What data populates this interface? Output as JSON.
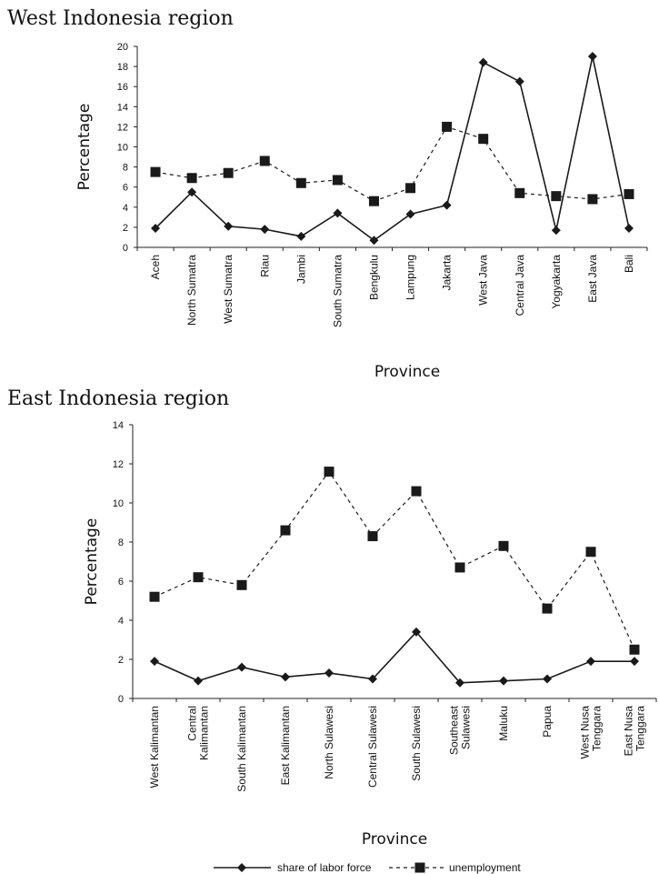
{
  "chart_data": [
    {
      "type": "line",
      "title": "West Indonesia region",
      "xlabel": "Province",
      "ylabel": "Percentage",
      "ylim": [
        0,
        20
      ],
      "yticks": [
        0,
        2,
        4,
        6,
        8,
        10,
        12,
        14,
        16,
        18,
        20
      ],
      "categories": [
        [
          "Aceh"
        ],
        [
          "North Sumatra"
        ],
        [
          "West Sumatra"
        ],
        [
          "Riau"
        ],
        [
          "Jambi"
        ],
        [
          "South Sumatra"
        ],
        [
          "Bengkulu"
        ],
        [
          "Lampung"
        ],
        [
          "Jakarta"
        ],
        [
          "West Java"
        ],
        [
          "Central Java"
        ],
        [
          "Yogyakarta"
        ],
        [
          "East Java"
        ],
        [
          "Bali"
        ]
      ],
      "series": [
        {
          "name": "share of labor force",
          "marker": "diamond",
          "line": "solid",
          "values": [
            1.9,
            5.5,
            2.1,
            1.8,
            1.1,
            3.4,
            0.7,
            3.3,
            4.2,
            18.4,
            16.5,
            1.7,
            19.0,
            1.9
          ]
        },
        {
          "name": "unemployment",
          "marker": "square",
          "line": "dashed",
          "values": [
            7.5,
            6.9,
            7.4,
            8.6,
            6.4,
            6.7,
            4.6,
            5.9,
            12.0,
            10.8,
            5.4,
            5.1,
            4.8,
            5.3
          ]
        }
      ]
    },
    {
      "type": "line",
      "title": "East Indonesia region",
      "xlabel": "Province",
      "ylabel": "Percentage",
      "ylim": [
        0,
        14
      ],
      "yticks": [
        0,
        2,
        4,
        6,
        8,
        10,
        12,
        14
      ],
      "categories": [
        [
          "West Kalimantan"
        ],
        [
          "Central",
          "Kalimantan"
        ],
        [
          "South Kalimantan"
        ],
        [
          "East Kalimantan"
        ],
        [
          "North Sulawesi"
        ],
        [
          "Central Sulawesi"
        ],
        [
          "South Sulawesi"
        ],
        [
          "Southeast",
          "Sulawesi"
        ],
        [
          "Maluku"
        ],
        [
          "Papua"
        ],
        [
          "West Nusa",
          "Tenggara"
        ],
        [
          "East Nusa",
          "Tenggara"
        ]
      ],
      "series": [
        {
          "name": "share of labor force",
          "marker": "diamond",
          "line": "solid",
          "values": [
            1.9,
            0.9,
            1.6,
            1.1,
            1.3,
            1.0,
            3.4,
            0.8,
            0.9,
            1.0,
            1.9,
            1.9
          ]
        },
        {
          "name": "unemployment",
          "marker": "square",
          "line": "dashed",
          "values": [
            5.2,
            6.2,
            5.8,
            8.6,
            11.6,
            8.3,
            10.6,
            6.7,
            7.8,
            4.6,
            7.5,
            2.5
          ]
        }
      ]
    }
  ],
  "legend": {
    "items": [
      {
        "label": "share of labor force",
        "marker": "diamond",
        "line": "solid"
      },
      {
        "label": "unemployment",
        "marker": "square",
        "line": "dashed"
      }
    ]
  }
}
